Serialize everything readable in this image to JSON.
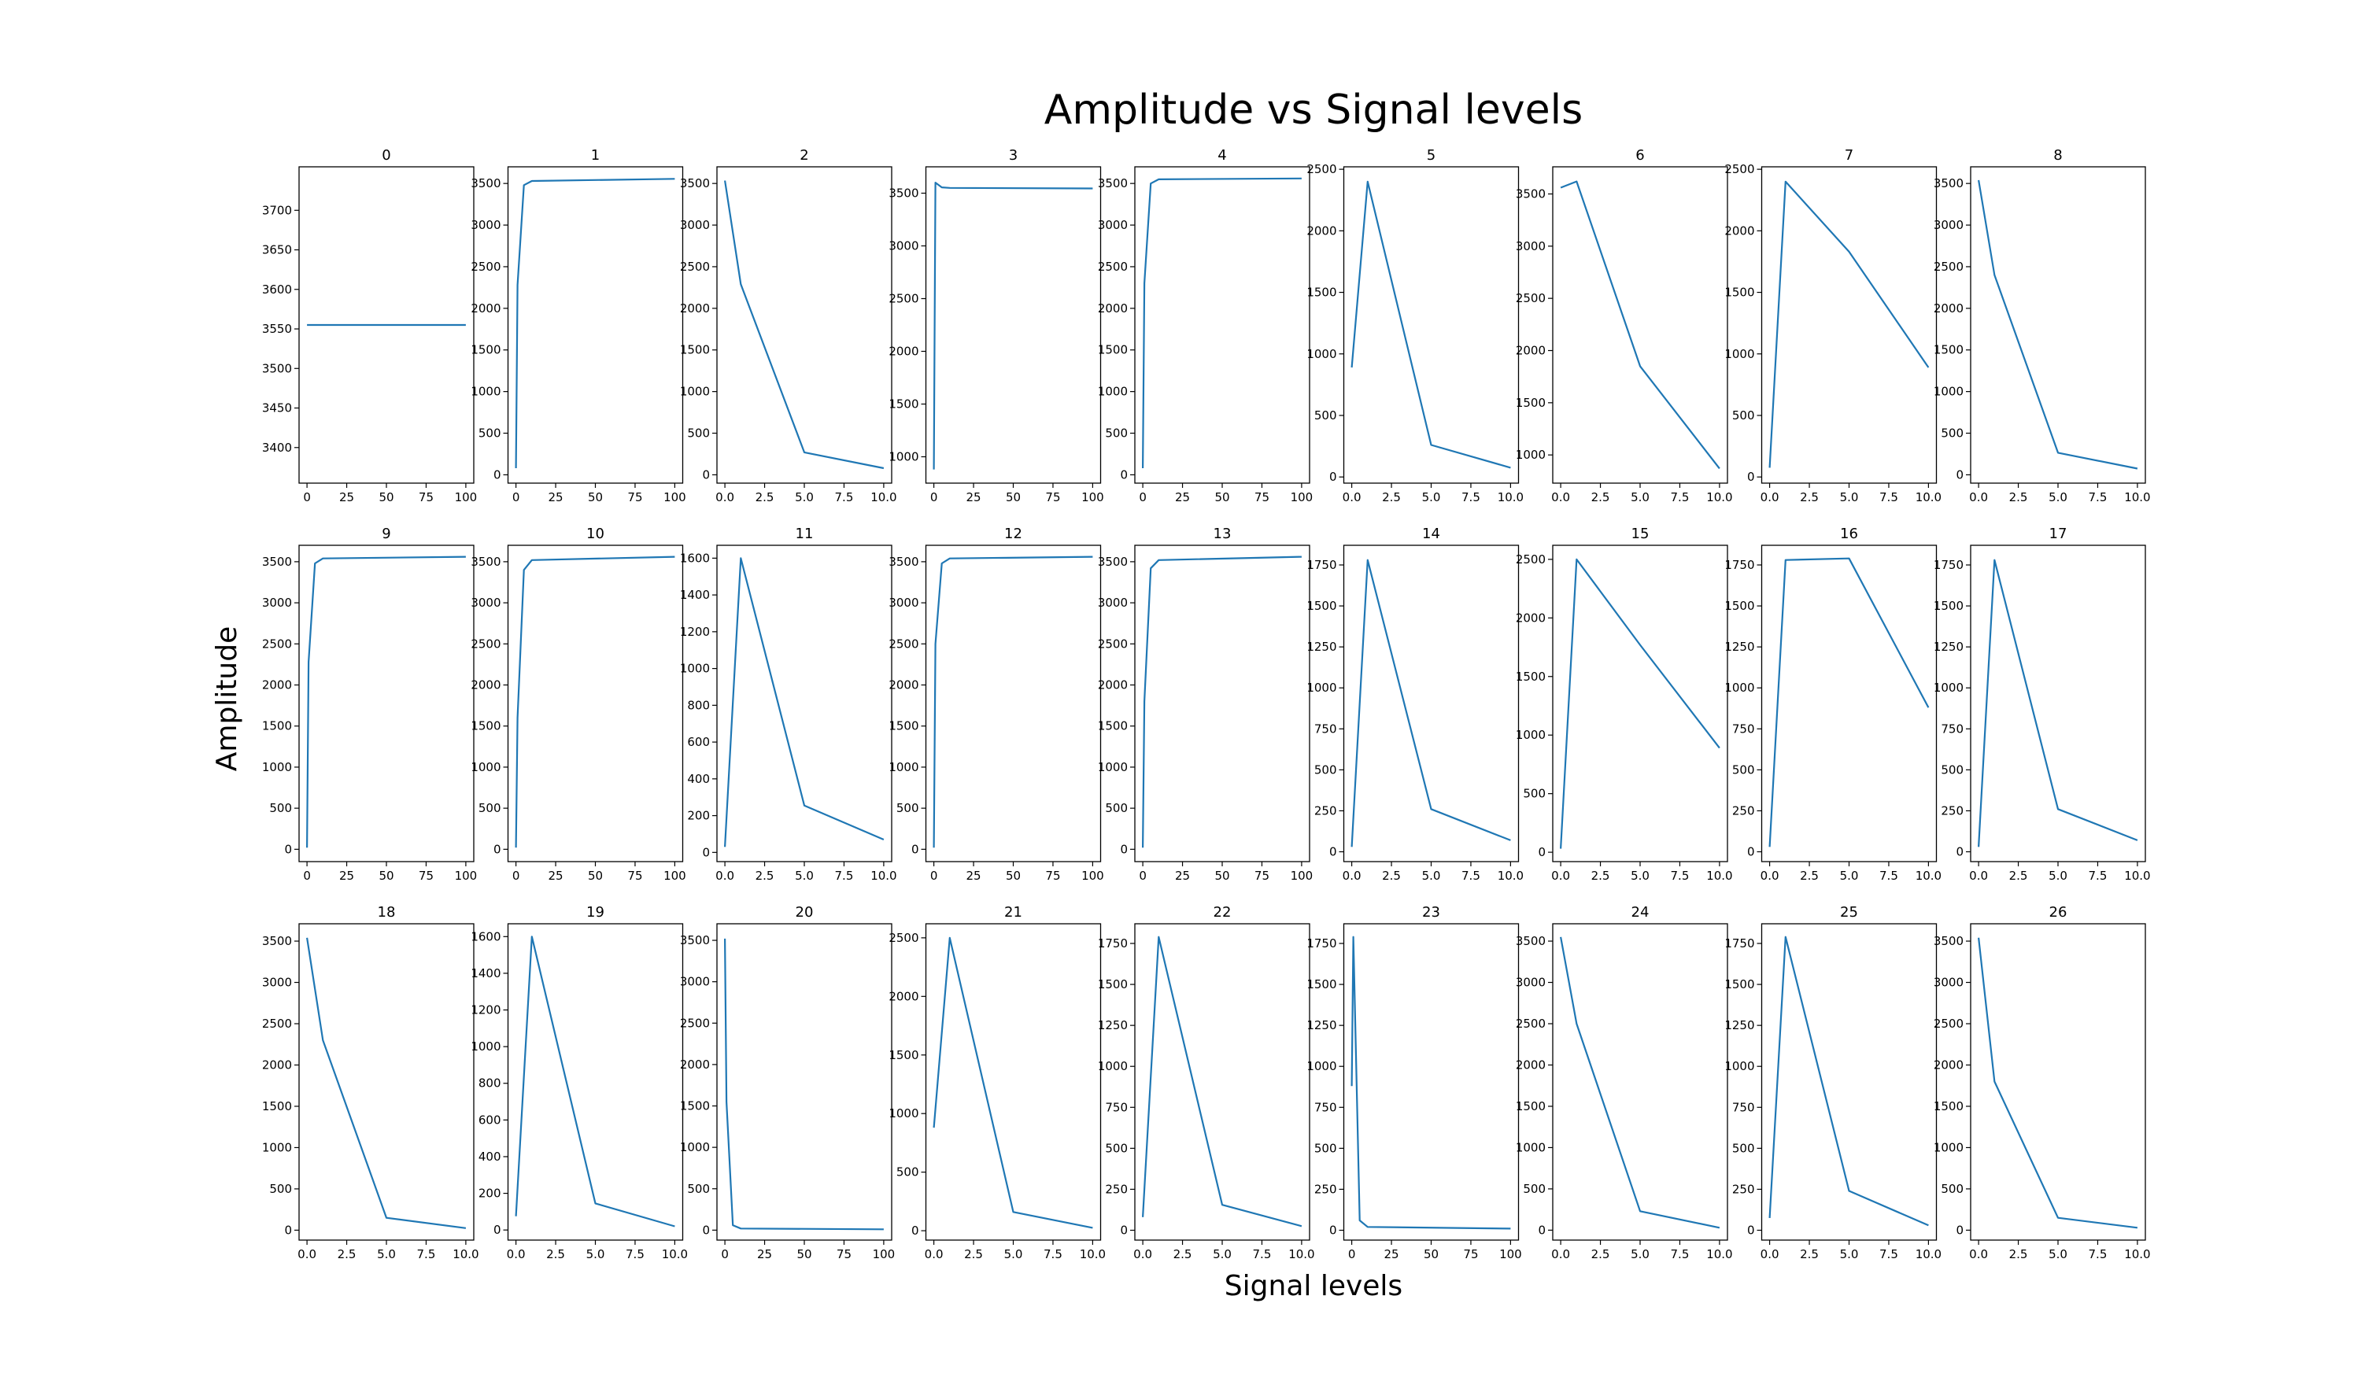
{
  "chart_data": {
    "type": "line",
    "title": "Amplitude vs Signal levels",
    "xlabel": "Signal levels",
    "ylabel": "Amplitude",
    "line_color": "#1f77b4",
    "grid": false,
    "subplots": [
      {
        "title": "0",
        "x": [
          0,
          1,
          5,
          10,
          100
        ],
        "y": [
          3555,
          3555,
          3555,
          3555,
          3555
        ],
        "xlim": [
          -5,
          105
        ],
        "ylim": [
          3355,
          3755
        ],
        "xticks": [
          0,
          25,
          50,
          75,
          100
        ],
        "yticks": [
          3400,
          3450,
          3500,
          3550,
          3600,
          3650,
          3700
        ]
      },
      {
        "title": "1",
        "x": [
          0,
          1,
          5,
          10,
          100
        ],
        "y": [
          80,
          2280,
          3480,
          3530,
          3555
        ],
        "xlim": [
          -5,
          105
        ],
        "ylim": [
          -100,
          3700
        ],
        "xticks": [
          0,
          25,
          50,
          75,
          100
        ],
        "yticks": [
          0,
          500,
          1000,
          1500,
          2000,
          2500,
          3000,
          3500
        ]
      },
      {
        "title": "2",
        "x": [
          0,
          1,
          5,
          10
        ],
        "y": [
          3535,
          2290,
          270,
          80
        ],
        "xlim": [
          -0.5,
          10.5
        ],
        "ylim": [
          -100,
          3700
        ],
        "xticks": [
          0.0,
          2.5,
          5.0,
          7.5,
          10.0
        ],
        "yticks": [
          0,
          500,
          1000,
          1500,
          2000,
          2500,
          3000,
          3500
        ]
      },
      {
        "title": "3",
        "x": [
          0,
          1,
          5,
          10,
          100
        ],
        "y": [
          880,
          3600,
          3555,
          3550,
          3545
        ],
        "xlim": [
          -5,
          105
        ],
        "ylim": [
          750,
          3750
        ],
        "xticks": [
          0,
          25,
          50,
          75,
          100
        ],
        "yticks": [
          1000,
          1500,
          2000,
          2500,
          3000,
          3500
        ]
      },
      {
        "title": "4",
        "x": [
          0,
          1,
          5,
          10,
          100
        ],
        "y": [
          80,
          2300,
          3500,
          3550,
          3560
        ],
        "xlim": [
          -5,
          105
        ],
        "ylim": [
          -100,
          3700
        ],
        "xticks": [
          0,
          25,
          50,
          75,
          100
        ],
        "yticks": [
          0,
          500,
          1000,
          1500,
          2000,
          2500,
          3000,
          3500
        ]
      },
      {
        "title": "5",
        "x": [
          0,
          1,
          5,
          10
        ],
        "y": [
          890,
          2400,
          260,
          75
        ],
        "xlim": [
          -0.5,
          10.5
        ],
        "ylim": [
          -50,
          2520
        ],
        "xticks": [
          0.0,
          2.5,
          5.0,
          7.5,
          10.0
        ],
        "yticks": [
          0,
          500,
          1000,
          1500,
          2000,
          2500
        ]
      },
      {
        "title": "6",
        "x": [
          0,
          1,
          5,
          10
        ],
        "y": [
          3560,
          3620,
          1850,
          870
        ],
        "xlim": [
          -0.5,
          10.5
        ],
        "ylim": [
          730,
          3760
        ],
        "xticks": [
          0.0,
          2.5,
          5.0,
          7.5,
          10.0
        ],
        "yticks": [
          1000,
          1500,
          2000,
          2500,
          3000,
          3500
        ]
      },
      {
        "title": "7",
        "x": [
          0,
          1,
          5,
          10
        ],
        "y": [
          75,
          2400,
          1830,
          890
        ],
        "xlim": [
          -0.5,
          10.5
        ],
        "ylim": [
          -50,
          2520
        ],
        "xticks": [
          0.0,
          2.5,
          5.0,
          7.5,
          10.0
        ],
        "yticks": [
          0,
          500,
          1000,
          1500,
          2000,
          2500
        ]
      },
      {
        "title": "8",
        "x": [
          0,
          1,
          5,
          10
        ],
        "y": [
          3540,
          2400,
          265,
          75
        ],
        "xlim": [
          -0.5,
          10.5
        ],
        "ylim": [
          -100,
          3700
        ],
        "xticks": [
          0.0,
          2.5,
          5.0,
          7.5,
          10.0
        ],
        "yticks": [
          0,
          500,
          1000,
          1500,
          2000,
          2500,
          3000,
          3500
        ]
      },
      {
        "title": "9",
        "x": [
          0,
          1,
          5,
          10,
          100
        ],
        "y": [
          20,
          2280,
          3480,
          3540,
          3560
        ],
        "xlim": [
          -5,
          105
        ],
        "ylim": [
          -150,
          3700
        ],
        "xticks": [
          0,
          25,
          50,
          75,
          100
        ],
        "yticks": [
          0,
          500,
          1000,
          1500,
          2000,
          2500,
          3000,
          3500
        ]
      },
      {
        "title": "10",
        "x": [
          0,
          1,
          5,
          10,
          100
        ],
        "y": [
          20,
          1600,
          3400,
          3520,
          3560
        ],
        "xlim": [
          -5,
          105
        ],
        "ylim": [
          -150,
          3700
        ],
        "xticks": [
          0,
          25,
          50,
          75,
          100
        ],
        "yticks": [
          0,
          500,
          1000,
          1500,
          2000,
          2500,
          3000,
          3500
        ]
      },
      {
        "title": "11",
        "x": [
          0,
          1,
          5,
          10
        ],
        "y": [
          30,
          1600,
          255,
          70
        ],
        "xlim": [
          -0.5,
          10.5
        ],
        "ylim": [
          -50,
          1670
        ],
        "xticks": [
          0.0,
          2.5,
          5.0,
          7.5,
          10.0
        ],
        "yticks": [
          0,
          200,
          400,
          600,
          800,
          1000,
          1200,
          1400,
          1600
        ]
      },
      {
        "title": "12",
        "x": [
          0,
          1,
          5,
          10,
          100
        ],
        "y": [
          20,
          2500,
          3480,
          3540,
          3560
        ],
        "xlim": [
          -5,
          105
        ],
        "ylim": [
          -150,
          3700
        ],
        "xticks": [
          0,
          25,
          50,
          75,
          100
        ],
        "yticks": [
          0,
          500,
          1000,
          1500,
          2000,
          2500,
          3000,
          3500
        ]
      },
      {
        "title": "13",
        "x": [
          0,
          1,
          5,
          10,
          100
        ],
        "y": [
          20,
          1800,
          3420,
          3520,
          3560
        ],
        "xlim": [
          -5,
          105
        ],
        "ylim": [
          -150,
          3700
        ],
        "xticks": [
          0,
          25,
          50,
          75,
          100
        ],
        "yticks": [
          0,
          500,
          1000,
          1500,
          2000,
          2500,
          3000,
          3500
        ]
      },
      {
        "title": "14",
        "x": [
          0,
          1,
          5,
          10
        ],
        "y": [
          30,
          1780,
          260,
          70
        ],
        "xlim": [
          -0.5,
          10.5
        ],
        "ylim": [
          -60,
          1870
        ],
        "xticks": [
          0.0,
          2.5,
          5.0,
          7.5,
          10.0
        ],
        "yticks": [
          0,
          250,
          500,
          750,
          1000,
          1250,
          1500,
          1750
        ]
      },
      {
        "title": "15",
        "x": [
          0,
          1,
          5,
          10
        ],
        "y": [
          30,
          2500,
          1770,
          890
        ],
        "xlim": [
          -0.5,
          10.5
        ],
        "ylim": [
          -80,
          2620
        ],
        "xticks": [
          0.0,
          2.5,
          5.0,
          7.5,
          10.0
        ],
        "yticks": [
          0,
          500,
          1000,
          1500,
          2000,
          2500
        ]
      },
      {
        "title": "16",
        "x": [
          0,
          1,
          5,
          10
        ],
        "y": [
          30,
          1780,
          1790,
          880
        ],
        "xlim": [
          -0.5,
          10.5
        ],
        "ylim": [
          -60,
          1870
        ],
        "xticks": [
          0.0,
          2.5,
          5.0,
          7.5,
          10.0
        ],
        "yticks": [
          0,
          250,
          500,
          750,
          1000,
          1250,
          1500,
          1750
        ]
      },
      {
        "title": "17",
        "x": [
          0,
          1,
          5,
          10
        ],
        "y": [
          30,
          1780,
          260,
          70
        ],
        "xlim": [
          -0.5,
          10.5
        ],
        "ylim": [
          -60,
          1870
        ],
        "xticks": [
          0.0,
          2.5,
          5.0,
          7.5,
          10.0
        ],
        "yticks": [
          0,
          250,
          500,
          750,
          1000,
          1250,
          1500,
          1750
        ]
      },
      {
        "title": "18",
        "x": [
          0,
          1,
          5,
          10
        ],
        "y": [
          3540,
          2300,
          150,
          25
        ],
        "xlim": [
          -0.5,
          10.5
        ],
        "ylim": [
          -120,
          3710
        ],
        "xticks": [
          0.0,
          2.5,
          5.0,
          7.5,
          10.0
        ],
        "yticks": [
          0,
          500,
          1000,
          1500,
          2000,
          2500,
          3000,
          3500
        ]
      },
      {
        "title": "19",
        "x": [
          0,
          1,
          5,
          10
        ],
        "y": [
          75,
          1600,
          145,
          20
        ],
        "xlim": [
          -0.5,
          10.5
        ],
        "ylim": [
          -55,
          1670
        ],
        "xticks": [
          0.0,
          2.5,
          5.0,
          7.5,
          10.0
        ],
        "yticks": [
          0,
          200,
          400,
          600,
          800,
          1000,
          1200,
          1400,
          1600
        ]
      },
      {
        "title": "20",
        "x": [
          0,
          1,
          5,
          10,
          100
        ],
        "y": [
          3520,
          1550,
          60,
          20,
          10
        ],
        "xlim": [
          -5,
          105
        ],
        "ylim": [
          -120,
          3700
        ],
        "xticks": [
          0,
          25,
          50,
          75,
          100
        ],
        "yticks": [
          0,
          500,
          1000,
          1500,
          2000,
          2500,
          3000,
          3500
        ]
      },
      {
        "title": "21",
        "x": [
          0,
          1,
          5,
          10
        ],
        "y": [
          880,
          2500,
          160,
          25
        ],
        "xlim": [
          -0.5,
          10.5
        ],
        "ylim": [
          -80,
          2620
        ],
        "xticks": [
          0.0,
          2.5,
          5.0,
          7.5,
          10.0
        ],
        "yticks": [
          0,
          500,
          1000,
          1500,
          2000,
          2500
        ]
      },
      {
        "title": "22",
        "x": [
          0,
          1,
          5,
          10
        ],
        "y": [
          80,
          1790,
          155,
          25
        ],
        "xlim": [
          -0.5,
          10.5
        ],
        "ylim": [
          -60,
          1870
        ],
        "xticks": [
          0.0,
          2.5,
          5.0,
          7.5,
          10.0
        ],
        "yticks": [
          0,
          250,
          500,
          750,
          1000,
          1250,
          1500,
          1750
        ]
      },
      {
        "title": "23",
        "x": [
          0,
          1,
          5,
          10,
          100
        ],
        "y": [
          880,
          1790,
          60,
          20,
          10
        ],
        "xlim": [
          -5,
          105
        ],
        "ylim": [
          -60,
          1870
        ],
        "xticks": [
          0,
          25,
          50,
          75,
          100
        ],
        "yticks": [
          0,
          250,
          500,
          750,
          1000,
          1250,
          1500,
          1750
        ]
      },
      {
        "title": "24",
        "x": [
          0,
          1,
          5,
          10
        ],
        "y": [
          3550,
          2500,
          230,
          30
        ],
        "xlim": [
          -0.5,
          10.5
        ],
        "ylim": [
          -120,
          3710
        ],
        "xticks": [
          0.0,
          2.5,
          5.0,
          7.5,
          10.0
        ],
        "yticks": [
          0,
          500,
          1000,
          1500,
          2000,
          2500,
          3000,
          3500
        ]
      },
      {
        "title": "25",
        "x": [
          0,
          1,
          5,
          10
        ],
        "y": [
          75,
          1790,
          240,
          30
        ],
        "xlim": [
          -0.5,
          10.5
        ],
        "ylim": [
          -60,
          1870
        ],
        "xticks": [
          0.0,
          2.5,
          5.0,
          7.5,
          10.0
        ],
        "yticks": [
          0,
          250,
          500,
          750,
          1000,
          1250,
          1500,
          1750
        ]
      },
      {
        "title": "26",
        "x": [
          0,
          1,
          5,
          10
        ],
        "y": [
          3540,
          1800,
          150,
          30
        ],
        "xlim": [
          -0.5,
          10.5
        ],
        "ylim": [
          -120,
          3710
        ],
        "xticks": [
          0.0,
          2.5,
          5.0,
          7.5,
          10.0
        ],
        "yticks": [
          0,
          500,
          1000,
          1500,
          2000,
          2500,
          3000,
          3500
        ]
      }
    ]
  }
}
